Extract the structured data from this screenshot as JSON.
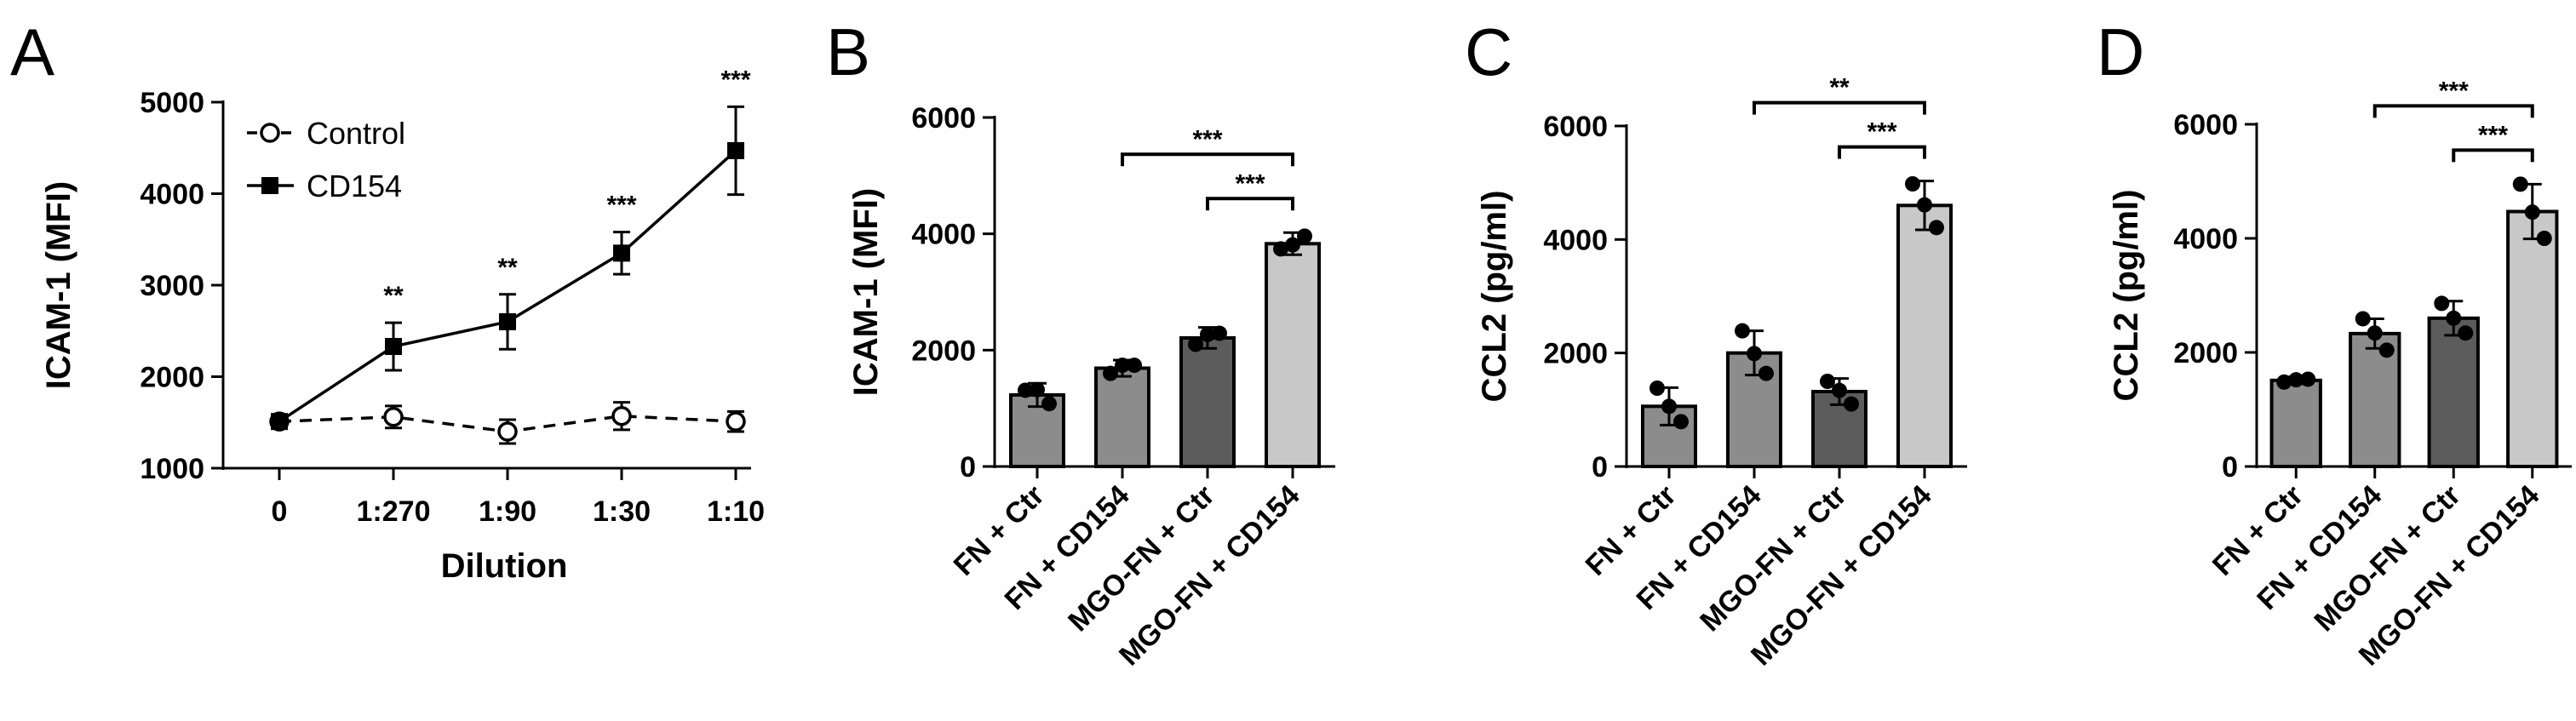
{
  "panels": [
    "A",
    "B",
    "C",
    "D"
  ],
  "chart_data": [
    {
      "id": "A",
      "type": "line",
      "xlabel": "Dilution",
      "ylabel": "ICAM-1 (MFI)",
      "categories": [
        "0",
        "1:270",
        "1:90",
        "1:30",
        "1:10"
      ],
      "ylim": [
        1000,
        5000
      ],
      "yticks": [
        1000,
        2000,
        3000,
        4000,
        5000
      ],
      "legend_position": "top-left",
      "series": [
        {
          "name": "Control",
          "marker": "open-circle",
          "dash": true,
          "values": [
            1510,
            1560,
            1400,
            1570,
            1510
          ],
          "err": [
            60,
            120,
            130,
            150,
            110
          ]
        },
        {
          "name": "CD154",
          "marker": "filled-square",
          "dash": false,
          "values": [
            1510,
            2330,
            2600,
            3350,
            4470
          ],
          "err": [
            60,
            260,
            300,
            230,
            480
          ]
        }
      ],
      "annotations": [
        {
          "category": "1:270",
          "text": "**"
        },
        {
          "category": "1:90",
          "text": "**"
        },
        {
          "category": "1:30",
          "text": "***"
        },
        {
          "category": "1:10",
          "text": "***"
        }
      ]
    },
    {
      "id": "B",
      "type": "bar",
      "ylabel": "ICAM-1 (MFI)",
      "categories": [
        "FN + Ctr",
        "FN + CD154",
        "MGO-FN + Ctr",
        "MGO-FN + CD154"
      ],
      "values": [
        1230,
        1690,
        2210,
        3830
      ],
      "err": [
        200,
        140,
        180,
        190
      ],
      "points": [
        [
          1310,
          1080,
          1320
        ],
        [
          1600,
          1740,
          1740
        ],
        [
          2100,
          2290,
          2270
        ],
        [
          3740,
          3960,
          3810
        ]
      ],
      "bar_colors": [
        "#8c8c8c",
        "#8c8c8c",
        "#5c5c5c",
        "#c8c8c8"
      ],
      "ylim": [
        0,
        6000
      ],
      "yticks": [
        0,
        2000,
        4000,
        6000
      ],
      "brackets": [
        {
          "from": 1,
          "to": 3,
          "text": "***",
          "level": "upper"
        },
        {
          "from": 2,
          "to": 3,
          "text": "***",
          "level": "lower"
        }
      ]
    },
    {
      "id": "C",
      "type": "bar",
      "ylabel": "CCL2 (pg/ml)",
      "categories": [
        "FN + Ctr",
        "FN + CD154",
        "MGO-FN + Ctr",
        "MGO-FN + CD154"
      ],
      "values": [
        1060,
        2000,
        1320,
        4600
      ],
      "err": [
        330,
        390,
        230,
        430
      ],
      "points": [
        [
          1380,
          790,
          1060
        ],
        [
          2390,
          1640,
          1990
        ],
        [
          1500,
          1100,
          1340
        ],
        [
          4980,
          4210,
          4610
        ]
      ],
      "bar_colors": [
        "#8c8c8c",
        "#8c8c8c",
        "#5c5c5c",
        "#c8c8c8"
      ],
      "ylim": [
        0,
        6000
      ],
      "yticks": [
        0,
        2000,
        4000,
        6000
      ],
      "brackets": [
        {
          "from": 1,
          "to": 3,
          "text": "**",
          "level": "upper"
        },
        {
          "from": 2,
          "to": 3,
          "text": "***",
          "level": "lower"
        }
      ]
    },
    {
      "id": "D",
      "type": "bar",
      "ylabel": "CCL2 (pg/ml)",
      "categories": [
        "FN + Ctr",
        "FN + CD154",
        "MGO-FN + Ctr",
        "MGO-FN + CD154"
      ],
      "values": [
        1510,
        2330,
        2600,
        4470
      ],
      "err": [
        60,
        260,
        300,
        480
      ],
      "points": [
        [
          1480,
          1530,
          1520
        ],
        [
          2590,
          2040,
          2340
        ],
        [
          2860,
          2340,
          2600
        ],
        [
          4950,
          4000,
          4460
        ]
      ],
      "bar_colors": [
        "#8c8c8c",
        "#8c8c8c",
        "#5c5c5c",
        "#c8c8c8"
      ],
      "ylim": [
        0,
        6000
      ],
      "yticks": [
        0,
        2000,
        4000,
        6000
      ],
      "brackets": [
        {
          "from": 1,
          "to": 3,
          "text": "***",
          "level": "upper"
        },
        {
          "from": 2,
          "to": 3,
          "text": "***",
          "level": "lower"
        }
      ]
    }
  ]
}
